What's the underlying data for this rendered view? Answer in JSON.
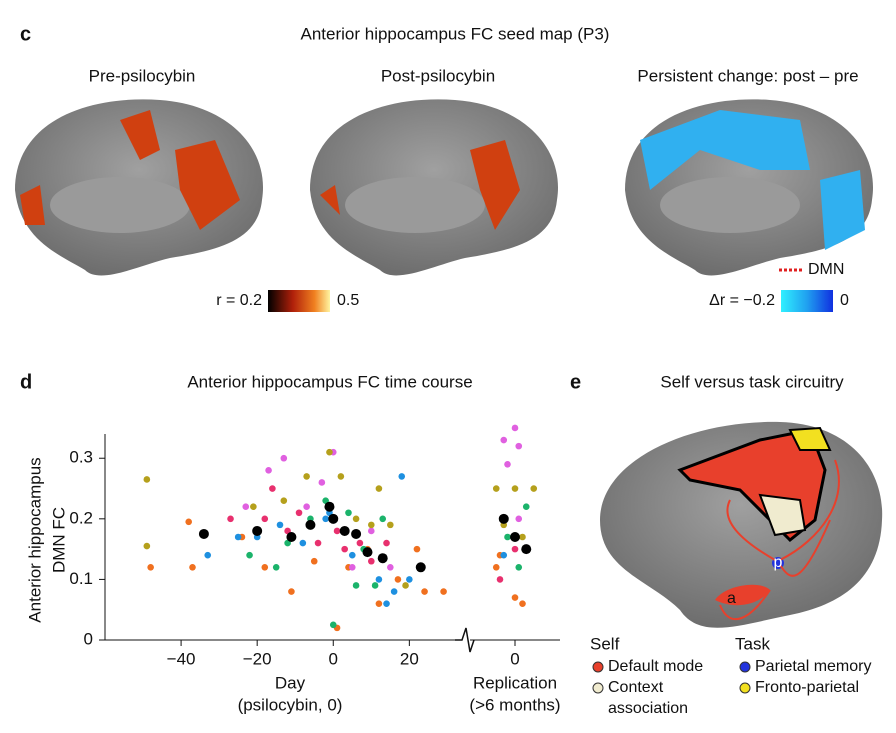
{
  "panels": {
    "c": {
      "letter": "c",
      "title": "Anterior hippocampus FC seed map (P3)",
      "subtitles": [
        "Pre-psilocybin",
        "Post-psilocybin",
        "Persistent change: post – pre"
      ],
      "bar1": [
        "r = 0.2",
        "0.5"
      ],
      "bar2": [
        "Δr = −0.2",
        "0"
      ],
      "dmn": "DMN"
    },
    "d": {
      "letter": "d"
    },
    "e": {
      "letter": "e",
      "title": "Self versus task circuitry",
      "a": "a",
      "p": "p",
      "self": "Self",
      "task": "Task",
      "items": [
        {
          "label": "Default mode",
          "color": "#e8402c"
        },
        {
          "label": "Context",
          "color": "#f0ebcf"
        },
        {
          "label": "association"
        },
        {
          "label": "Parietal memory",
          "color": "#2233dd"
        },
        {
          "label": "Fronto-parietal",
          "color": "#f2e020"
        }
      ]
    }
  },
  "chart_data": [
    {
      "type": "scatter",
      "title": "Anterior hippocampus FC time course",
      "ylabel": [
        "Anterior hippocampus",
        "DMN FC"
      ],
      "xlabel": [
        "Day",
        "(psilocybin, 0)"
      ],
      "xlim": [
        -60,
        32
      ],
      "ylim": [
        0,
        0.34
      ],
      "xticks": [
        {
          "value": -40,
          "label": "−40"
        },
        {
          "value": -20,
          "label": "−20"
        },
        0,
        20
      ],
      "yticks": [
        0,
        0.1,
        0.2,
        0.3
      ],
      "series": [
        {
          "color": "#f0701f",
          "x": [
            -48,
            -37,
            -38,
            -24,
            -18,
            -11,
            -5,
            0,
            1,
            4,
            9,
            12,
            17,
            22,
            29,
            24
          ],
          "values": [
            0.12,
            0.12,
            0.195,
            0.17,
            0.12,
            0.08,
            0.13,
            0.2,
            0.02,
            0.12,
            0.15,
            0.06,
            0.1,
            0.15,
            0.08,
            0.08
          ]
        },
        {
          "color": "#1e90e0",
          "x": [
            -33,
            -25,
            -20,
            -14,
            -8,
            -2,
            -1,
            5,
            12,
            14,
            16,
            18,
            20
          ],
          "values": [
            0.14,
            0.17,
            0.17,
            0.19,
            0.16,
            0.2,
            0.21,
            0.14,
            0.1,
            0.06,
            0.08,
            0.27,
            0.1
          ]
        },
        {
          "color": "#1bb36b",
          "x": [
            -22,
            -15,
            -12,
            -6,
            -2,
            0,
            4,
            6,
            8,
            11,
            13
          ],
          "values": [
            0.14,
            0.12,
            0.16,
            0.2,
            0.23,
            0.025,
            0.21,
            0.09,
            0.15,
            0.09,
            0.2
          ]
        },
        {
          "color": "#e8306e",
          "x": [
            -27,
            -18,
            -16,
            -12,
            -9,
            -4,
            1,
            3,
            7,
            10,
            14
          ],
          "values": [
            0.2,
            0.2,
            0.25,
            0.18,
            0.21,
            0.16,
            0.18,
            0.15,
            0.16,
            0.13,
            0.16
          ]
        },
        {
          "color": "#e060e0",
          "x": [
            -23,
            -17,
            -13,
            -7,
            -3,
            0,
            5,
            10,
            15
          ],
          "values": [
            0.22,
            0.28,
            0.3,
            0.22,
            0.26,
            0.31,
            0.12,
            0.18,
            0.12
          ]
        },
        {
          "color": "#b5a01c",
          "x": [
            -49,
            -49,
            -21,
            -13,
            -7,
            -1,
            2,
            6,
            10,
            12,
            15,
            19
          ],
          "values": [
            0.265,
            0.155,
            0.22,
            0.23,
            0.27,
            0.31,
            0.27,
            0.2,
            0.19,
            0.25,
            0.19,
            0.09
          ]
        },
        {
          "color": "#000000",
          "x": [
            -34,
            -20,
            -11,
            -6,
            -1,
            0,
            3,
            6,
            9,
            13,
            23
          ],
          "values": [
            0.175,
            0.18,
            0.17,
            0.19,
            0.22,
            0.2,
            0.18,
            0.175,
            0.145,
            0.135,
            0.12
          ]
        }
      ]
    },
    {
      "type": "scatter",
      "xlabel": [
        "Replication",
        "(>6 months)"
      ],
      "xlim": [
        -12,
        12
      ],
      "ylim": [
        0,
        0.34
      ],
      "xticks": [
        0
      ],
      "series": [
        {
          "color": "#f0701f",
          "x": [
            -5,
            0,
            2,
            -4
          ],
          "values": [
            0.12,
            0.07,
            0.06,
            0.14
          ]
        },
        {
          "color": "#1e90e0",
          "x": [
            -3
          ],
          "values": [
            0.14
          ]
        },
        {
          "color": "#1bb36b",
          "x": [
            -2,
            1,
            3
          ],
          "values": [
            0.17,
            0.12,
            0.22
          ]
        },
        {
          "color": "#e8306e",
          "x": [
            -4,
            0
          ],
          "values": [
            0.1,
            0.15
          ]
        },
        {
          "color": "#e060e0",
          "x": [
            -3,
            0,
            1,
            -2,
            1
          ],
          "values": [
            0.33,
            0.35,
            0.32,
            0.29,
            0.2
          ]
        },
        {
          "color": "#b5a01c",
          "x": [
            -5,
            0,
            5,
            -3,
            2
          ],
          "values": [
            0.25,
            0.25,
            0.25,
            0.19,
            0.17
          ]
        },
        {
          "color": "#000000",
          "x": [
            -3,
            0,
            3
          ],
          "values": [
            0.2,
            0.17,
            0.15
          ]
        }
      ]
    }
  ]
}
